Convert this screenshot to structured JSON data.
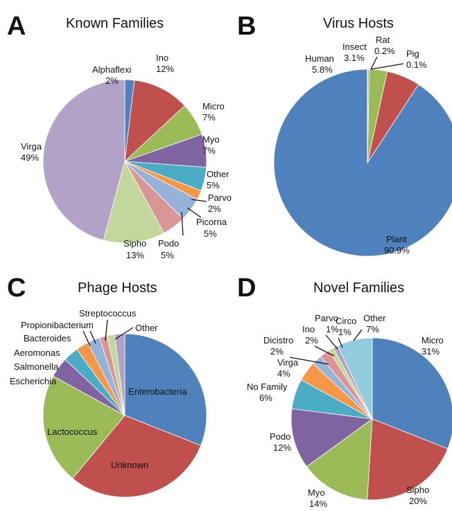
{
  "colors": {
    "blue": "#4F81BD",
    "red": "#C0504D",
    "green": "#9BBB59",
    "purple": "#8064A2",
    "teal": "#4BACC6",
    "orange": "#F79646",
    "light_blue": "#95B3D7",
    "pink": "#D99694",
    "light_green": "#C3D69B",
    "lavender": "#B2A2C7",
    "light_teal": "#93CDDD"
  },
  "chart_data": [
    {
      "type": "pie",
      "panel": "A",
      "title": "Known Families",
      "slices": [
        {
          "name": "Alphaflexi",
          "value": 2,
          "label": "2%",
          "color": "blue"
        },
        {
          "name": "Ino",
          "value": 12,
          "label": "12%",
          "color": "red"
        },
        {
          "name": "Micro",
          "value": 7,
          "label": "7%",
          "color": "green"
        },
        {
          "name": "Myo",
          "value": 7,
          "label": "7%",
          "color": "purple"
        },
        {
          "name": "Other",
          "value": 5,
          "label": "5%",
          "color": "teal"
        },
        {
          "name": "Parvo",
          "value": 2,
          "label": "2%",
          "color": "orange"
        },
        {
          "name": "Picorna",
          "value": 5,
          "label": "5%",
          "color": "light_blue"
        },
        {
          "name": "Podo",
          "value": 5,
          "label": "5%",
          "color": "pink"
        },
        {
          "name": "Sipho",
          "value": 13,
          "label": "13%",
          "color": "light_green"
        },
        {
          "name": "Virga",
          "value": 49,
          "label": "49%",
          "color": "lavender"
        }
      ]
    },
    {
      "type": "pie",
      "panel": "B",
      "title": "Virus Hosts",
      "slices": [
        {
          "name": "Plant",
          "value": 90.9,
          "label": "90.9%",
          "color": "blue"
        },
        {
          "name": "Human",
          "value": 5.8,
          "label": "5.8%",
          "color": "red"
        },
        {
          "name": "Insect",
          "value": 3.1,
          "label": "3.1%",
          "color": "green"
        },
        {
          "name": "Rat",
          "value": 0.2,
          "label": "0.2%",
          "color": "purple"
        },
        {
          "name": "Pig",
          "value": 0.1,
          "label": "0.1%",
          "color": "teal"
        }
      ]
    },
    {
      "type": "pie",
      "panel": "C",
      "title": "Phage Hosts",
      "slices": [
        {
          "name": "Enterobacteria",
          "value": 31,
          "color": "blue"
        },
        {
          "name": "Unknown",
          "value": 30,
          "color": "red"
        },
        {
          "name": "Lactococcus",
          "value": 22,
          "color": "green"
        },
        {
          "name": "Escherichia",
          "value": 4,
          "color": "purple"
        },
        {
          "name": "Salmonella",
          "value": 3,
          "color": "teal"
        },
        {
          "name": "Aeromonas",
          "value": 2.5,
          "color": "orange"
        },
        {
          "name": "Bacteroides",
          "value": 2.5,
          "color": "light_blue"
        },
        {
          "name": "Propionibacterium",
          "value": 1.5,
          "color": "pink"
        },
        {
          "name": "Streptococcus",
          "value": 1.5,
          "color": "light_green"
        },
        {
          "name": "Other",
          "value": 2,
          "color": "lavender"
        }
      ]
    },
    {
      "type": "pie",
      "panel": "D",
      "title": "Novel Families",
      "slices": [
        {
          "name": "Micro",
          "value": 31,
          "label": "31%",
          "color": "blue"
        },
        {
          "name": "Sipho",
          "value": 20,
          "label": "20%",
          "color": "red"
        },
        {
          "name": "Myo",
          "value": 14,
          "label": "14%",
          "color": "green"
        },
        {
          "name": "Podo",
          "value": 12,
          "label": "12%",
          "color": "purple"
        },
        {
          "name": "No Family",
          "value": 6,
          "label": "6%",
          "color": "teal"
        },
        {
          "name": "Virga",
          "value": 4,
          "label": "4%",
          "color": "orange"
        },
        {
          "name": "Dicistro",
          "value": 2,
          "label": "2%",
          "color": "light_blue"
        },
        {
          "name": "Ino",
          "value": 2,
          "label": "2%",
          "color": "pink"
        },
        {
          "name": "Parvo",
          "value": 1,
          "label": "1%",
          "color": "light_green"
        },
        {
          "name": "Circo",
          "value": 1,
          "label": "1%",
          "color": "lavender"
        },
        {
          "name": "Other",
          "value": 7,
          "label": "7%",
          "color": "light_teal"
        }
      ]
    }
  ]
}
